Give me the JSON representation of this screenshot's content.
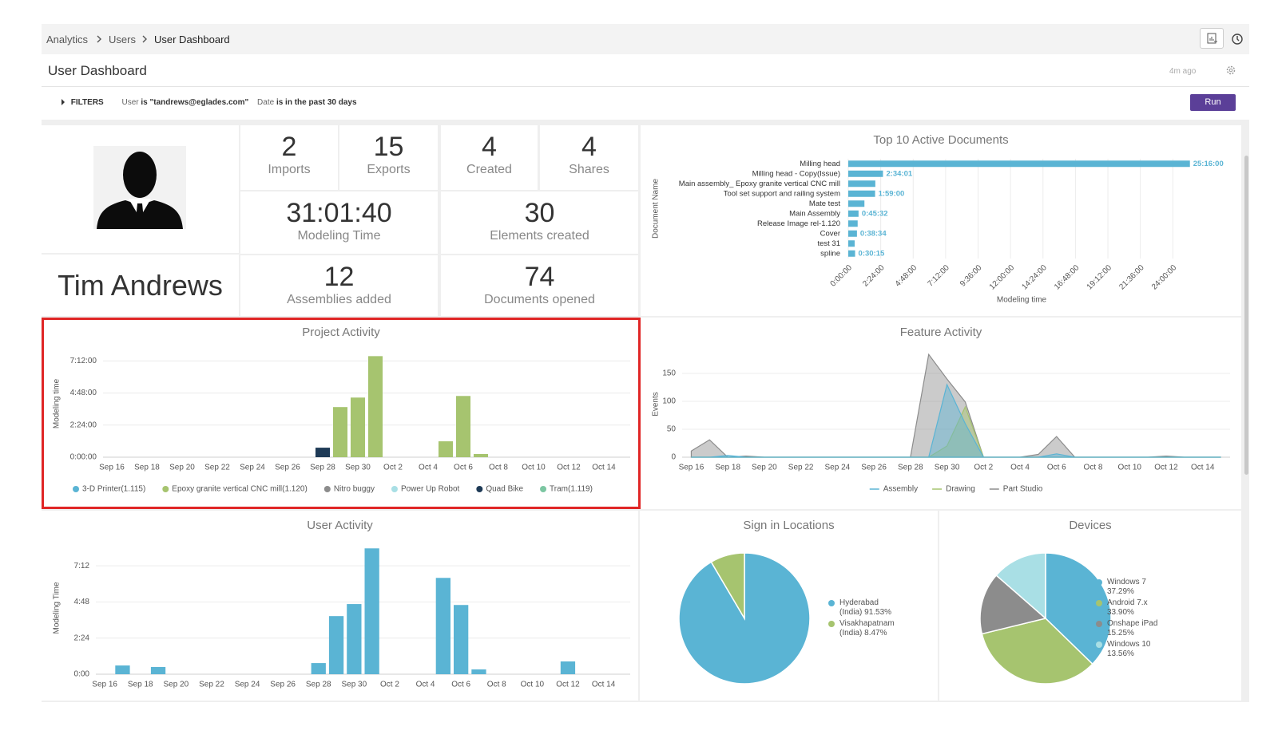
{
  "breadcrumb": [
    "Analytics",
    "Users",
    "User Dashboard"
  ],
  "header": {
    "title": "User Dashboard",
    "updated": "4m ago"
  },
  "filters": {
    "label": "FILTERS",
    "conditions": [
      {
        "field": "User",
        "condition": "is \"tandrews@eglades.com\""
      },
      {
        "field": "Date",
        "condition": "is in the past 30 days"
      }
    ],
    "run": "Run"
  },
  "profile": {
    "name": "Tim Andrews"
  },
  "stats": [
    {
      "value": 2,
      "label": "Imports"
    },
    {
      "value": 15,
      "label": "Exports"
    },
    {
      "value": 4,
      "label": "Created"
    },
    {
      "value": 4,
      "label": "Shares"
    },
    {
      "value": "31:01:40",
      "label": "Modeling Time"
    },
    {
      "value": 30,
      "label": "Elements created"
    },
    {
      "value": 12,
      "label": "Assemblies added"
    },
    {
      "value": 74,
      "label": "Documents opened"
    }
  ],
  "chart_data": [
    {
      "type": "bar",
      "orientation": "horizontal",
      "title": "Top 10 Active Documents",
      "xlabel": "Modeling time",
      "ylabel": "Document Name",
      "categories": [
        "Milling head",
        "Milling head - Copy(Issue)",
        "Main assembly_ Epoxy granite vertical CNC mill",
        "Tool set support and railing system",
        "Mate test",
        "Main Assembly",
        "Release Image rel-1.120",
        "Cover",
        "test 31",
        "spline"
      ],
      "values": [
        90960,
        9241,
        7200,
        7140,
        4300,
        2732,
        2500,
        2314,
        1700,
        1815
      ],
      "value_labels": [
        "25:16:00",
        "2:34:01",
        null,
        "1:59:00",
        null,
        "0:45:32",
        null,
        "0:38:34",
        null,
        "0:30:15"
      ],
      "color": "#5ab4d4",
      "xlim": [
        0,
        100800
      ],
      "xticks": [
        {
          "value": 0,
          "label": "0:00:00"
        },
        {
          "value": 8640,
          "label": "2:24:00"
        },
        {
          "value": 17280,
          "label": "4:48:00"
        },
        {
          "value": 25920,
          "label": "7:12:00"
        },
        {
          "value": 34560,
          "label": "9:36:00"
        },
        {
          "value": 43200,
          "label": "12:00:00"
        },
        {
          "value": 51840,
          "label": "14:24:00"
        },
        {
          "value": 60480,
          "label": "16:48:00"
        },
        {
          "value": 69120,
          "label": "19:12:00"
        },
        {
          "value": 77760,
          "label": "21:36:00"
        },
        {
          "value": 86400,
          "label": "24:00:00"
        }
      ],
      "grid": true
    },
    {
      "type": "bar",
      "stacked": true,
      "title": "Project Activity",
      "ylabel": "Modeling time",
      "categories": [
        "Sep 16",
        null,
        "Sep 18",
        null,
        "Sep 20",
        null,
        "Sep 22",
        null,
        "Sep 24",
        null,
        "Sep 26",
        null,
        "Sep 28",
        null,
        "Sep 30",
        null,
        "Oct 2",
        null,
        "Oct 4",
        null,
        "Oct 6",
        null,
        "Oct 8",
        null,
        "Oct 10",
        null,
        "Oct 12",
        null,
        "Oct 14",
        null
      ],
      "series": [
        {
          "name": "3-D Printer(1.115)",
          "color": "#5ab4d4",
          "values": [
            0,
            0,
            0,
            0,
            0,
            0,
            0,
            0,
            0,
            0,
            0,
            0,
            0,
            0,
            0,
            0,
            0,
            0,
            0,
            0,
            0,
            0,
            0,
            0,
            0,
            0,
            0,
            0,
            0,
            0
          ]
        },
        {
          "name": "Epoxy granite vertical CNC mill(1.120)",
          "color": "#a6c46f",
          "values": [
            0,
            0,
            0,
            0,
            0,
            0,
            0,
            0,
            0,
            0,
            0,
            0,
            0,
            13500,
            16060,
            27220,
            0,
            0,
            0,
            4280,
            16490,
            860,
            0,
            0,
            0,
            0,
            0,
            0,
            0,
            0
          ]
        },
        {
          "name": "Nitro buggy",
          "color": "#8c8c8c",
          "values": [
            0,
            0,
            0,
            0,
            0,
            0,
            0,
            0,
            0,
            0,
            0,
            0,
            0,
            0,
            0,
            0,
            0,
            0,
            0,
            0,
            0,
            0,
            0,
            0,
            0,
            0,
            0,
            0,
            0,
            0
          ]
        },
        {
          "name": "Power Up Robot",
          "color": "#a9dfe5",
          "values": [
            0,
            0,
            0,
            0,
            0,
            0,
            0,
            0,
            0,
            0,
            0,
            0,
            0,
            0,
            0,
            0,
            0,
            0,
            0,
            0,
            0,
            0,
            0,
            0,
            0,
            0,
            0,
            0,
            0,
            0
          ]
        },
        {
          "name": "Quad Bike",
          "color": "#1e3a56",
          "values": [
            0,
            0,
            0,
            0,
            0,
            0,
            0,
            0,
            0,
            0,
            0,
            0,
            2560,
            0,
            0,
            0,
            0,
            0,
            0,
            0,
            0,
            0,
            0,
            0,
            0,
            0,
            0,
            0,
            0,
            0
          ]
        },
        {
          "name": "Tram(1.119)",
          "color": "#7cc6a2",
          "values": [
            0,
            0,
            0,
            0,
            0,
            0,
            0,
            0,
            0,
            0,
            0,
            0,
            0,
            0,
            0,
            0,
            0,
            0,
            0,
            0,
            0,
            0,
            0,
            0,
            0,
            0,
            0,
            0,
            0,
            0
          ]
        }
      ],
      "ylim": [
        0,
        28800
      ],
      "yticks": [
        {
          "value": 0,
          "label": "0:00:00"
        },
        {
          "value": 8640,
          "label": "2:24:00"
        },
        {
          "value": 17280,
          "label": "4:48:00"
        },
        {
          "value": 25920,
          "label": "7:12:00"
        }
      ],
      "grid": true,
      "legend": "bottom"
    },
    {
      "type": "area",
      "title": "Feature Activity",
      "ylabel": "Events",
      "categories": [
        "Sep 16",
        null,
        "Sep 18",
        null,
        "Sep 20",
        null,
        "Sep 22",
        null,
        "Sep 24",
        null,
        "Sep 26",
        null,
        "Sep 28",
        null,
        "Sep 30",
        null,
        "Oct 2",
        null,
        "Oct 4",
        null,
        "Oct 6",
        null,
        "Oct 8",
        null,
        "Oct 10",
        null,
        "Oct 12",
        null,
        "Oct 14",
        null
      ],
      "series": [
        {
          "name": "Assembly",
          "color": "#5ab4d4",
          "values": [
            0,
            0,
            3,
            0,
            0,
            0,
            0,
            0,
            0,
            0,
            0,
            0,
            0,
            0,
            130,
            60,
            0,
            0,
            0,
            0,
            6,
            0,
            0,
            0,
            0,
            0,
            0,
            0,
            0,
            0
          ]
        },
        {
          "name": "Drawing",
          "color": "#a6c46f",
          "values": [
            0,
            0,
            0,
            0,
            0,
            0,
            0,
            0,
            0,
            0,
            0,
            0,
            0,
            0,
            20,
            90,
            0,
            0,
            0,
            0,
            0,
            0,
            0,
            0,
            0,
            0,
            0,
            0,
            0,
            0
          ]
        },
        {
          "name": "Part Studio",
          "color": "#8c8c8c",
          "values": [
            11,
            31,
            0,
            2,
            0,
            0,
            0,
            0,
            0,
            0,
            0,
            0,
            0,
            184,
            140,
            99,
            0,
            0,
            0,
            5,
            37,
            0,
            0,
            0,
            0,
            0,
            2,
            0,
            0,
            0
          ]
        }
      ],
      "ylim": [
        0,
        190
      ],
      "yticks": [
        0,
        50,
        100,
        150
      ],
      "grid": true,
      "legend": "bottom"
    },
    {
      "type": "bar",
      "title": "User Activity",
      "ylabel": "Modeling Time",
      "categories": [
        "Sep 16",
        null,
        "Sep 18",
        null,
        "Sep 20",
        null,
        "Sep 22",
        null,
        "Sep 24",
        null,
        "Sep 26",
        null,
        "Sep 28",
        null,
        "Sep 30",
        null,
        "Oct 2",
        null,
        "Oct 4",
        null,
        "Oct 6",
        null,
        "Oct 8",
        null,
        "Oct 10",
        null,
        "Oct 12",
        null,
        "Oct 14",
        null
      ],
      "values": [
        0,
        2090,
        0,
        1730,
        0,
        0,
        0,
        0,
        0,
        0,
        0,
        0,
        2660,
        13900,
        16780,
        30100,
        0,
        0,
        0,
        23040,
        16560,
        1150,
        0,
        0,
        0,
        0,
        3060,
        0,
        0,
        0
      ],
      "color": "#5ab4d4",
      "ylim": [
        0,
        31680
      ],
      "yticks": [
        {
          "value": 0,
          "label": "0:00"
        },
        {
          "value": 8640,
          "label": "2:24"
        },
        {
          "value": 17280,
          "label": "4:48"
        },
        {
          "value": 25920,
          "label": "7:12"
        }
      ],
      "grid": true
    },
    {
      "type": "pie",
      "title": "Sign in Locations",
      "categories": [
        "Hyderabad (India)",
        "Visakhapatnam (India)"
      ],
      "values": [
        91.53,
        8.47
      ],
      "value_labels": [
        "91.53%",
        "8.47%"
      ],
      "colors": [
        "#5ab4d4",
        "#a6c46f"
      ],
      "legend": "right"
    },
    {
      "type": "pie",
      "title": "Devices",
      "categories": [
        "Windows 7",
        "Android 7.x",
        "Onshape iPad",
        "Windows 10"
      ],
      "values": [
        37.29,
        33.9,
        15.25,
        13.56
      ],
      "value_labels": [
        "37.29%",
        "33.90%",
        "15.25%",
        "13.56%"
      ],
      "colors": [
        "#5ab4d4",
        "#a6c46f",
        "#8c8c8c",
        "#a9dfe5"
      ],
      "legend": "right"
    }
  ]
}
